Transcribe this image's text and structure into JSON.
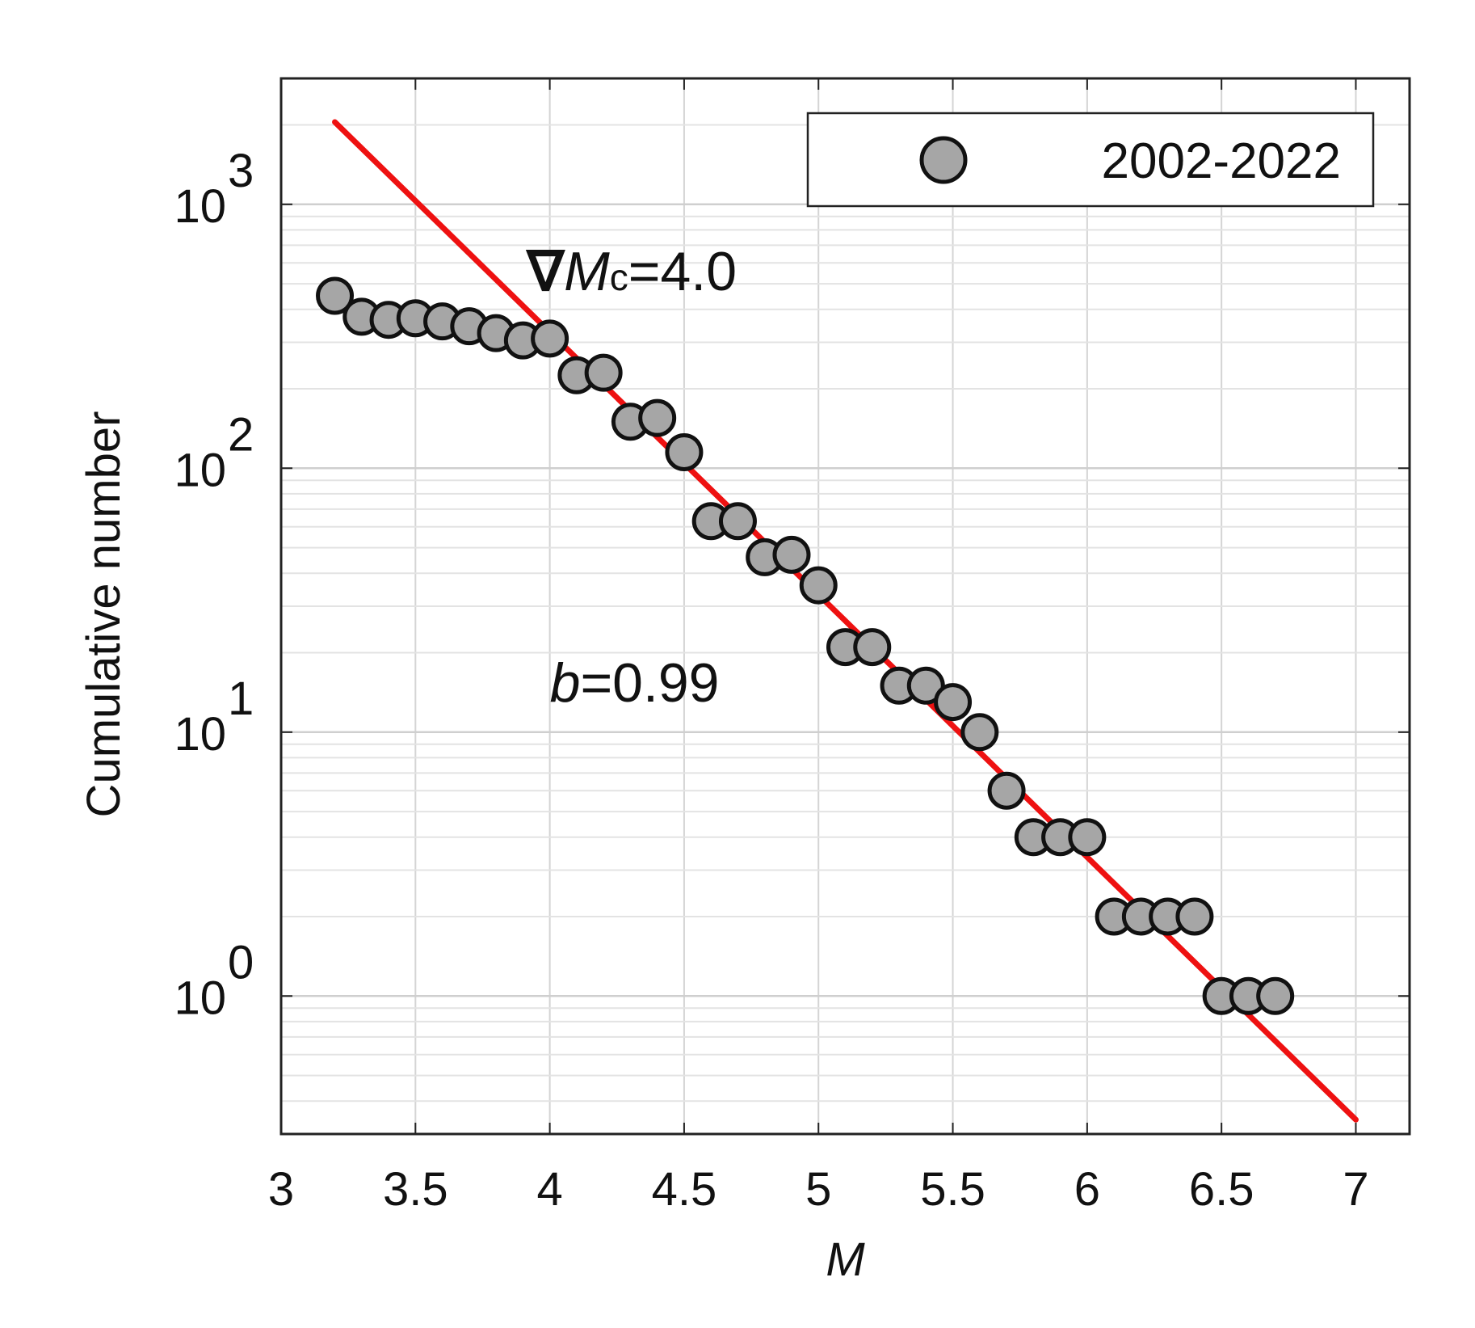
{
  "chart_data": {
    "type": "scatter",
    "xlabel": "M",
    "ylabel": "Cumulative number",
    "xlim": [
      3,
      7.2
    ],
    "ylim": [
      0.3,
      3000
    ],
    "y_scale": "log",
    "grid": true,
    "legend_position": "top-right",
    "x_ticks": [
      "3",
      "3.5",
      "4",
      "4.5",
      "5",
      "5.5",
      "6",
      "6.5",
      "7"
    ],
    "y_ticks": [
      {
        "base": "10",
        "exp": "0",
        "value": 1
      },
      {
        "base": "10",
        "exp": "1",
        "value": 10
      },
      {
        "base": "10",
        "exp": "2",
        "value": 100
      },
      {
        "base": "10",
        "exp": "3",
        "value": 1000
      }
    ],
    "series": [
      {
        "name": "2002-2022",
        "color": "#a6a6a6",
        "points": [
          {
            "x": 3.2,
            "y": 450
          },
          {
            "x": 3.3,
            "y": 375
          },
          {
            "x": 3.4,
            "y": 365
          },
          {
            "x": 3.5,
            "y": 370
          },
          {
            "x": 3.6,
            "y": 360
          },
          {
            "x": 3.7,
            "y": 345
          },
          {
            "x": 3.8,
            "y": 325
          },
          {
            "x": 3.9,
            "y": 305
          },
          {
            "x": 4.0,
            "y": 310
          },
          {
            "x": 4.1,
            "y": 225
          },
          {
            "x": 4.2,
            "y": 230
          },
          {
            "x": 4.3,
            "y": 150
          },
          {
            "x": 4.4,
            "y": 155
          },
          {
            "x": 4.5,
            "y": 115
          },
          {
            "x": 4.6,
            "y": 63
          },
          {
            "x": 4.7,
            "y": 63
          },
          {
            "x": 4.8,
            "y": 46
          },
          {
            "x": 4.9,
            "y": 47
          },
          {
            "x": 5.0,
            "y": 36
          },
          {
            "x": 5.1,
            "y": 21
          },
          {
            "x": 5.2,
            "y": 21
          },
          {
            "x": 5.3,
            "y": 15
          },
          {
            "x": 5.4,
            "y": 15
          },
          {
            "x": 5.5,
            "y": 13
          },
          {
            "x": 5.6,
            "y": 10
          },
          {
            "x": 5.7,
            "y": 6
          },
          {
            "x": 5.8,
            "y": 4
          },
          {
            "x": 5.9,
            "y": 4
          },
          {
            "x": 6.0,
            "y": 4
          },
          {
            "x": 6.1,
            "y": 2
          },
          {
            "x": 6.2,
            "y": 2
          },
          {
            "x": 6.3,
            "y": 2
          },
          {
            "x": 6.4,
            "y": 2
          },
          {
            "x": 6.5,
            "y": 1
          },
          {
            "x": 6.6,
            "y": 1
          },
          {
            "x": 6.7,
            "y": 1
          }
        ]
      }
    ],
    "fit_line": {
      "color": "#ee1111",
      "points": [
        {
          "x": 3.2,
          "y": 2050
        },
        {
          "x": 7.0,
          "y": 0.34
        }
      ]
    },
    "annotations": {
      "mc": {
        "symbol": "∇",
        "var": "M",
        "sub": "c",
        "rest": "=4.0",
        "x": 4.0,
        "y": 310
      },
      "b": {
        "var": "b",
        "rest": "=0.99"
      }
    }
  }
}
